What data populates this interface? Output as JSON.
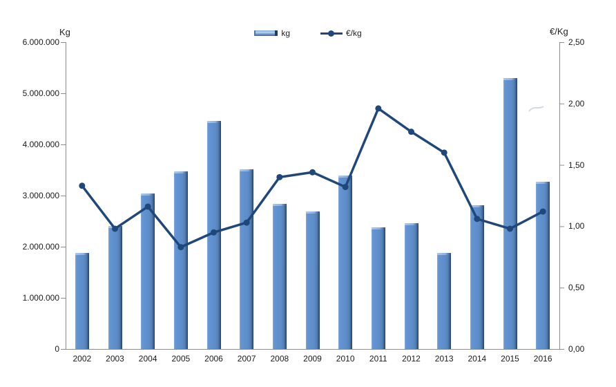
{
  "chart_data": {
    "type": "combo-bar-line",
    "title": "",
    "categories": [
      "2002",
      "2003",
      "2004",
      "2005",
      "2006",
      "2007",
      "2008",
      "2009",
      "2010",
      "2011",
      "2012",
      "2013",
      "2014",
      "2015",
      "2016"
    ],
    "series": [
      {
        "name": "kg",
        "type": "bar",
        "axis": "left",
        "color": "#5E8DC9",
        "values": [
          1880000,
          2400000,
          3040000,
          3470000,
          4460000,
          3510000,
          2840000,
          2690000,
          3390000,
          2380000,
          2460000,
          1880000,
          2810000,
          5300000,
          3270000
        ]
      },
      {
        "name": "€/kg",
        "type": "line",
        "axis": "right",
        "color": "#1F4779",
        "values": [
          1.33,
          0.98,
          1.16,
          0.83,
          0.95,
          1.03,
          1.4,
          1.44,
          1.32,
          1.96,
          1.77,
          1.6,
          1.06,
          0.98,
          1.12
        ]
      }
    ],
    "left_axis": {
      "title": "Kg",
      "min": 0,
      "max": 6000000,
      "step": 1000000,
      "tick_labels": [
        "0",
        "1.000.000",
        "2.000.000",
        "3.000.000",
        "4.000.000",
        "5.000.000",
        "6.000.000"
      ]
    },
    "right_axis": {
      "title": "€/Kg",
      "min": 0,
      "max": 2.5,
      "step": 0.5,
      "tick_labels": [
        "0,00",
        "0,50",
        "1,00",
        "1,50",
        "2,00",
        "2,50"
      ]
    },
    "legend": {
      "position": "top-center",
      "items": [
        "kg",
        "€/kg"
      ]
    },
    "grid": false,
    "colors": {
      "bar_fill": "#5E8DC9",
      "bar_edge_dark": "#1F3B60",
      "line": "#1F4779",
      "axis_line": "#8C8C8C",
      "background": "#FFFFFF"
    }
  }
}
